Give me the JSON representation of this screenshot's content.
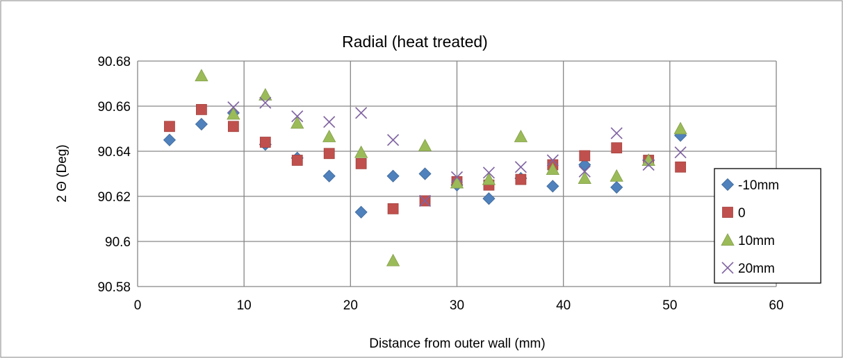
{
  "chart_data": {
    "type": "scatter",
    "title": "Radial (heat treated)",
    "xlabel": "Distance from outer wall (mm)",
    "ylabel": "2 Θ (Deg)",
    "xlim": [
      0,
      60
    ],
    "ylim": [
      90.58,
      90.68
    ],
    "x_ticks": [
      0,
      10,
      20,
      30,
      40,
      50,
      60
    ],
    "y_ticks": [
      90.58,
      90.6,
      90.62,
      90.64,
      90.66,
      90.68
    ],
    "x_tick_labels": [
      "0",
      "10",
      "20",
      "30",
      "40",
      "50",
      "60"
    ],
    "y_tick_labels": [
      "90.58",
      "90.6",
      "90.62",
      "90.64",
      "90.66",
      "90.68"
    ],
    "grid": true,
    "legend_position": "right",
    "series": [
      {
        "name": "-10mm",
        "marker": "diamond",
        "color": "#4F81BD",
        "x": [
          3,
          6,
          9,
          12,
          15,
          18,
          21,
          24,
          27,
          30,
          33,
          36,
          39,
          42,
          45,
          48,
          51
        ],
        "y": [
          90.645,
          90.652,
          90.657,
          90.643,
          90.637,
          90.629,
          90.613,
          90.629,
          90.63,
          90.625,
          90.619,
          90.628,
          90.6245,
          90.634,
          90.624,
          90.636,
          90.647
        ]
      },
      {
        "name": "0",
        "marker": "square",
        "color": "#C0504D",
        "x": [
          3,
          6,
          9,
          12,
          15,
          18,
          21,
          24,
          27,
          30,
          33,
          36,
          39,
          42,
          45,
          48,
          51
        ],
        "y": [
          90.651,
          90.6585,
          90.651,
          90.644,
          90.636,
          90.639,
          90.6345,
          90.6145,
          90.618,
          90.6265,
          90.625,
          90.6275,
          90.634,
          90.638,
          90.6415,
          90.636,
          90.633
        ]
      },
      {
        "name": "10mm",
        "marker": "triangle",
        "color": "#9BBB59",
        "x": [
          3,
          6,
          9,
          12,
          15,
          18,
          21,
          24,
          27,
          30,
          33,
          36,
          39,
          42,
          45,
          48,
          51
        ],
        "y": [
          null,
          90.6735,
          90.6565,
          90.665,
          90.6525,
          90.6465,
          90.6395,
          90.5915,
          90.6425,
          90.626,
          90.6275,
          90.6465,
          90.632,
          90.628,
          90.629,
          90.636,
          90.65
        ]
      },
      {
        "name": "20mm",
        "marker": "x",
        "color": "#8064A2",
        "x": [
          3,
          6,
          9,
          12,
          15,
          18,
          21,
          24,
          27,
          30,
          33,
          36,
          39,
          42,
          45,
          48,
          51
        ],
        "y": [
          null,
          null,
          90.6595,
          90.6615,
          90.6555,
          90.653,
          90.657,
          90.645,
          90.618,
          90.6285,
          90.6305,
          90.633,
          90.636,
          90.631,
          90.648,
          90.634,
          90.6395
        ]
      }
    ]
  }
}
